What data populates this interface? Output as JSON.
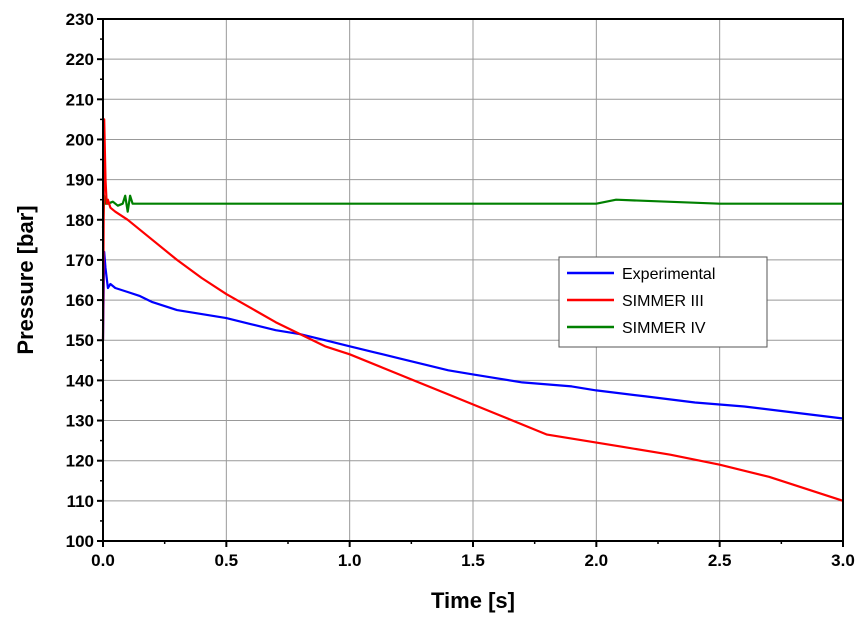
{
  "chart_data": {
    "type": "line",
    "title": "",
    "xlabel": "Time [s]",
    "ylabel": "Pressure [bar]",
    "xlim": [
      0.0,
      3.0
    ],
    "ylim": [
      100,
      230
    ],
    "x_ticks": [
      "0.0",
      "0.5",
      "1.0",
      "1.5",
      "2.0",
      "2.5",
      "3.0"
    ],
    "y_ticks": [
      "100",
      "110",
      "120",
      "130",
      "140",
      "150",
      "160",
      "170",
      "180",
      "190",
      "200",
      "210",
      "220",
      "230"
    ],
    "grid": true,
    "legend_position": "right",
    "series": [
      {
        "name": "Experimental",
        "color": "#0000ff",
        "x": [
          0.0,
          0.005,
          0.01,
          0.02,
          0.03,
          0.05,
          0.1,
          0.15,
          0.2,
          0.3,
          0.4,
          0.5,
          0.6,
          0.7,
          0.8,
          0.9,
          1.0,
          1.1,
          1.2,
          1.3,
          1.4,
          1.5,
          1.6,
          1.7,
          1.8,
          1.9,
          2.0,
          2.2,
          2.4,
          2.6,
          2.8,
          3.0
        ],
        "y": [
          150,
          172,
          168,
          163,
          164,
          163,
          162,
          161,
          159.5,
          157.5,
          156.5,
          155.5,
          154,
          152.5,
          151.5,
          150,
          148.5,
          147,
          145.5,
          144,
          142.5,
          141.5,
          140.5,
          139.5,
          139,
          138.5,
          137.5,
          136,
          134.5,
          133.5,
          132,
          130.5
        ]
      },
      {
        "name": "SIMMER III",
        "color": "#ff0000",
        "x": [
          0.0,
          0.005,
          0.01,
          0.015,
          0.02,
          0.03,
          0.05,
          0.1,
          0.2,
          0.3,
          0.4,
          0.5,
          0.6,
          0.7,
          0.8,
          0.9,
          1.0,
          1.2,
          1.4,
          1.6,
          1.8,
          2.0,
          2.1,
          2.3,
          2.5,
          2.7,
          2.8,
          2.9,
          3.0
        ],
        "y": [
          150,
          205,
          190,
          184,
          185,
          183,
          182,
          180,
          175,
          170,
          165.5,
          161.5,
          158,
          154.5,
          151.5,
          148.5,
          146.5,
          141.5,
          136.5,
          131.5,
          126.5,
          124.5,
          123.5,
          121.5,
          119,
          116,
          114,
          112,
          110
        ]
      },
      {
        "name": "SIMMER IV",
        "color": "#008000",
        "x": [
          0.0,
          0.005,
          0.01,
          0.02,
          0.04,
          0.06,
          0.08,
          0.09,
          0.1,
          0.11,
          0.12,
          0.2,
          0.5,
          1.0,
          1.5,
          2.0,
          2.08,
          2.5,
          3.0
        ],
        "y": [
          178,
          186,
          184,
          184,
          184.5,
          183.5,
          184,
          186,
          182,
          186,
          184,
          184,
          184,
          184,
          184,
          184,
          185,
          184,
          184
        ]
      }
    ]
  }
}
